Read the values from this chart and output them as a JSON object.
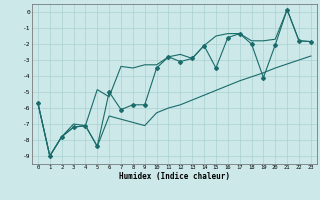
{
  "xlabel": "Humidex (Indice chaleur)",
  "bg_color": "#cce8e8",
  "line_color": "#1a6b6b",
  "grid_color": "#aad0d0",
  "x": [
    0,
    1,
    2,
    3,
    4,
    5,
    6,
    7,
    8,
    9,
    10,
    11,
    12,
    13,
    14,
    15,
    16,
    17,
    18,
    19,
    20,
    21,
    22,
    23
  ],
  "y_main": [
    -5.7,
    -9.0,
    -7.8,
    -7.2,
    -7.1,
    -8.4,
    -5.0,
    -6.1,
    -5.8,
    -5.8,
    -3.5,
    -2.8,
    -3.1,
    -2.9,
    -2.1,
    -3.5,
    -1.6,
    -1.35,
    -2.0,
    -4.1,
    -2.05,
    0.15,
    -1.8,
    -1.85
  ],
  "y_upper": [
    -5.7,
    -9.0,
    -7.8,
    -7.0,
    -7.1,
    -4.85,
    -5.3,
    -3.4,
    -3.5,
    -3.3,
    -3.3,
    -2.8,
    -2.65,
    -2.9,
    -2.1,
    -1.5,
    -1.35,
    -1.35,
    -1.8,
    -1.8,
    -1.7,
    0.15,
    -1.8,
    -1.85
  ],
  "y_lower": [
    -5.7,
    -9.0,
    -7.8,
    -7.2,
    -7.1,
    -8.4,
    -6.5,
    -6.7,
    -6.9,
    -7.1,
    -6.3,
    -6.0,
    -5.8,
    -5.5,
    -5.2,
    -4.9,
    -4.6,
    -4.3,
    -4.05,
    -3.8,
    -3.5,
    -3.25,
    -3.0,
    -2.75
  ],
  "xlim": [
    -0.5,
    23.5
  ],
  "ylim": [
    -9.5,
    0.5
  ],
  "yticks": [
    0,
    -1,
    -2,
    -3,
    -4,
    -5,
    -6,
    -7,
    -8,
    -9
  ]
}
